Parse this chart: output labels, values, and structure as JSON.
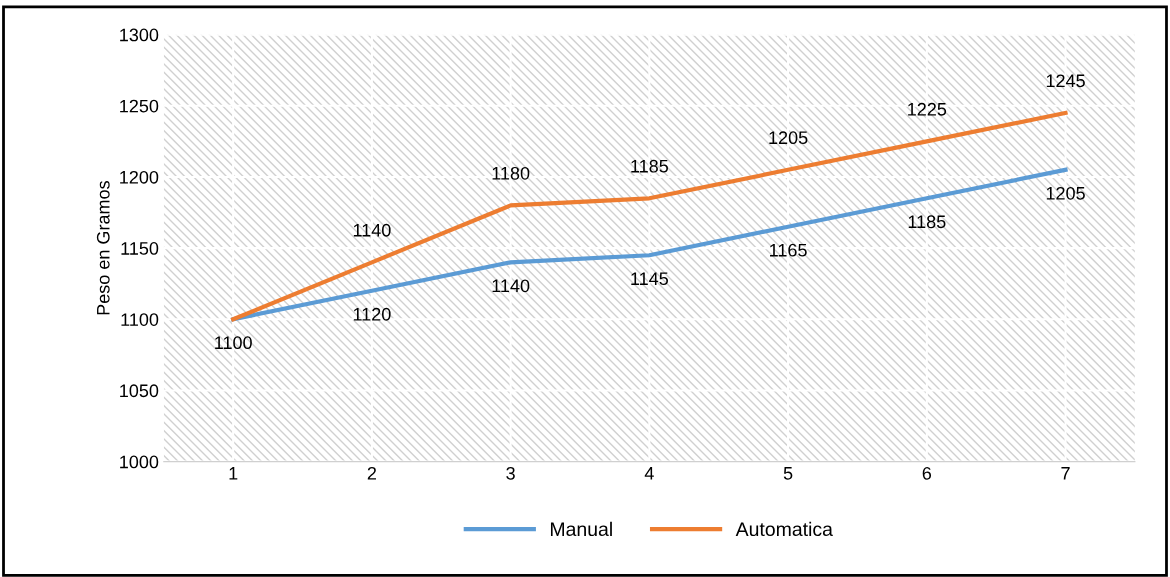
{
  "chart_data": {
    "type": "line",
    "ylabel": "Peso en Gramos",
    "categories": [
      "1",
      "2",
      "3",
      "4",
      "5",
      "6",
      "7"
    ],
    "series": [
      {
        "name": "Manual",
        "color": "#5b9bd5",
        "values": [
          1100,
          1120,
          1140,
          1145,
          1165,
          1185,
          1205
        ],
        "value_labels": [
          "1100",
          "1120",
          "1140",
          "1145",
          "1165",
          "1185",
          "1205"
        ]
      },
      {
        "name": "Automatica",
        "color": "#ed7d31",
        "values": [
          1100,
          1140,
          1180,
          1185,
          1205,
          1225,
          1245
        ],
        "value_labels": [
          null,
          "1140",
          "1180",
          "1185",
          "1205",
          "1225",
          "1245"
        ]
      }
    ],
    "ylim": [
      1000,
      1300
    ],
    "yticks": [
      1000,
      1050,
      1100,
      1150,
      1200,
      1250,
      1300
    ],
    "grid": true,
    "legend": "bottom",
    "marker": "none",
    "line_style": "solid"
  }
}
